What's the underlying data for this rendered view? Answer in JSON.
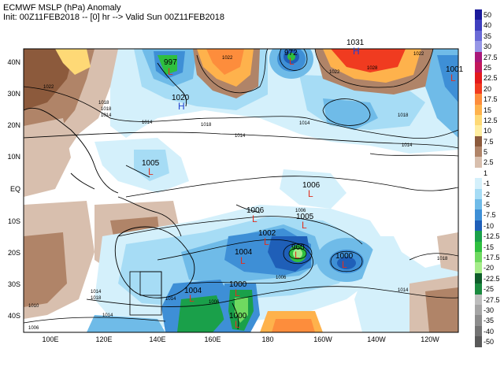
{
  "header": {
    "line1": "ECMWF MSLP (hPa) Anomaly",
    "line2": "Init: 00Z11FEB2018 -- [0] hr --> Valid Sun 00Z11FEB2018"
  },
  "axes": {
    "lat_labels": [
      "40N",
      "30N",
      "20N",
      "10N",
      "EQ",
      "10S",
      "20S",
      "30S",
      "40S"
    ],
    "lon_labels": [
      "100E",
      "120E",
      "140E",
      "160E",
      "180",
      "160W",
      "140W",
      "120W"
    ]
  },
  "pressure_centers": [
    {
      "kind": "L",
      "value": "997"
    },
    {
      "kind": "H",
      "value": "1020"
    },
    {
      "kind": "L",
      "value": "972"
    },
    {
      "kind": "H",
      "value": "1031"
    },
    {
      "kind": "L",
      "value": "1001"
    },
    {
      "kind": "L",
      "value": "1005"
    },
    {
      "kind": "L",
      "value": "1006"
    },
    {
      "kind": "L",
      "value": "1006"
    },
    {
      "kind": "L",
      "value": "1005"
    },
    {
      "kind": "L",
      "value": "1002"
    },
    {
      "kind": "L",
      "value": "960"
    },
    {
      "kind": "L",
      "value": "1004"
    },
    {
      "kind": "L",
      "value": "1000"
    },
    {
      "kind": "L",
      "value": "1004"
    },
    {
      "kind": "L",
      "value": "1000"
    },
    {
      "kind": "L",
      "value": "1000"
    }
  ],
  "contour_labels": [
    "1022",
    "1018",
    "1014",
    "1022",
    "1018",
    "1014",
    "1028",
    "1022",
    "1018",
    "1014",
    "1014",
    "1014",
    "1018",
    "1006",
    "1014",
    "1006",
    "1014",
    "1018",
    "1006",
    "1014",
    "1022",
    "1018",
    "1014",
    "1010",
    "1006"
  ],
  "colorbar": {
    "levels": [
      {
        "label": "50",
        "color": "#1b1a9b"
      },
      {
        "label": "40",
        "color": "#3f3fbf"
      },
      {
        "label": "35",
        "color": "#6a6ad6"
      },
      {
        "label": "30",
        "color": "#9696e6"
      },
      {
        "label": "27.5",
        "color": "#a9187a"
      },
      {
        "label": "25",
        "color": "#c2185b"
      },
      {
        "label": "22.5",
        "color": "#e31a1c"
      },
      {
        "label": "20",
        "color": "#f03b20"
      },
      {
        "label": "17.5",
        "color": "#fd8d3c"
      },
      {
        "label": "15",
        "color": "#feb24c"
      },
      {
        "label": "12.5",
        "color": "#fed976"
      },
      {
        "label": "10",
        "color": "#ffeda0"
      },
      {
        "label": "7.5",
        "color": "#8c5a3c"
      },
      {
        "label": "5",
        "color": "#b08468"
      },
      {
        "label": "2.5",
        "color": "#d8bfae"
      },
      {
        "label": "1",
        "color": "#ffffff"
      },
      {
        "label": "-1",
        "color": "#d4f0fb"
      },
      {
        "label": "-2",
        "color": "#a6dcf5"
      },
      {
        "label": "-5",
        "color": "#6fbbe8"
      },
      {
        "label": "-7.5",
        "color": "#3e8fd6"
      },
      {
        "label": "-10",
        "color": "#1f5fb8"
      },
      {
        "label": "-12.5",
        "color": "#1aa04a"
      },
      {
        "label": "-15",
        "color": "#2fbf3f"
      },
      {
        "label": "-17.5",
        "color": "#6fd960"
      },
      {
        "label": "-20",
        "color": "#a6ec8a"
      },
      {
        "label": "-22.5",
        "color": "#0e5d2a"
      },
      {
        "label": "-25",
        "color": "#1b8a3f"
      },
      {
        "label": "-27.5",
        "color": "#bdbdbd"
      },
      {
        "label": "-30",
        "color": "#a5a5a5"
      },
      {
        "label": "-35",
        "color": "#8c8c8c"
      },
      {
        "label": "-40",
        "color": "#737373"
      },
      {
        "label": "-50",
        "color": "#595959"
      }
    ]
  },
  "colors": {
    "low": "#e03020",
    "high": "#2040d0",
    "contour": "#000000"
  }
}
